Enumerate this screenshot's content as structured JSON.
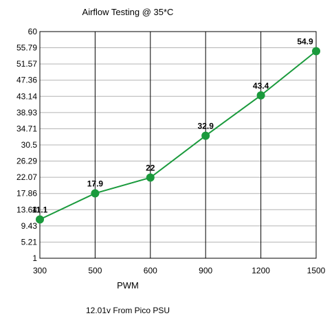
{
  "chart_data": {
    "type": "line",
    "title": "Airflow Testing @ 35*C",
    "xlabel": "PWM",
    "ylabel": "",
    "footnote": "12.01v From Pico PSU",
    "categories": [
      "300",
      "500",
      "600",
      "900",
      "1200",
      "1500"
    ],
    "series": [
      {
        "values": [
          11.1,
          17.9,
          22,
          32.9,
          43.4,
          54.9
        ],
        "data_labels": [
          "11.1",
          "17.9",
          "22",
          "32.9",
          "43.4",
          "54.9"
        ]
      }
    ],
    "ylim": [
      1,
      60
    ],
    "y_ticks": [
      1,
      5.21,
      9.43,
      13.64,
      17.86,
      22.07,
      26.29,
      30.5,
      34.71,
      38.93,
      43.14,
      47.36,
      51.57,
      55.79,
      60
    ],
    "y_tick_labels": [
      "1",
      "5.21",
      "9.43",
      "13.64",
      "17.86",
      "22.07",
      "26.29",
      "30.5",
      "34.71",
      "38.93",
      "43.14",
      "47.36",
      "51.57",
      "55.79",
      "60"
    ],
    "grid": true,
    "legend": "none",
    "colors": {
      "line": "#1a9a3c",
      "marker": "#1a9a3c",
      "grid": "#b4b4b4",
      "axis": "#000000"
    }
  }
}
